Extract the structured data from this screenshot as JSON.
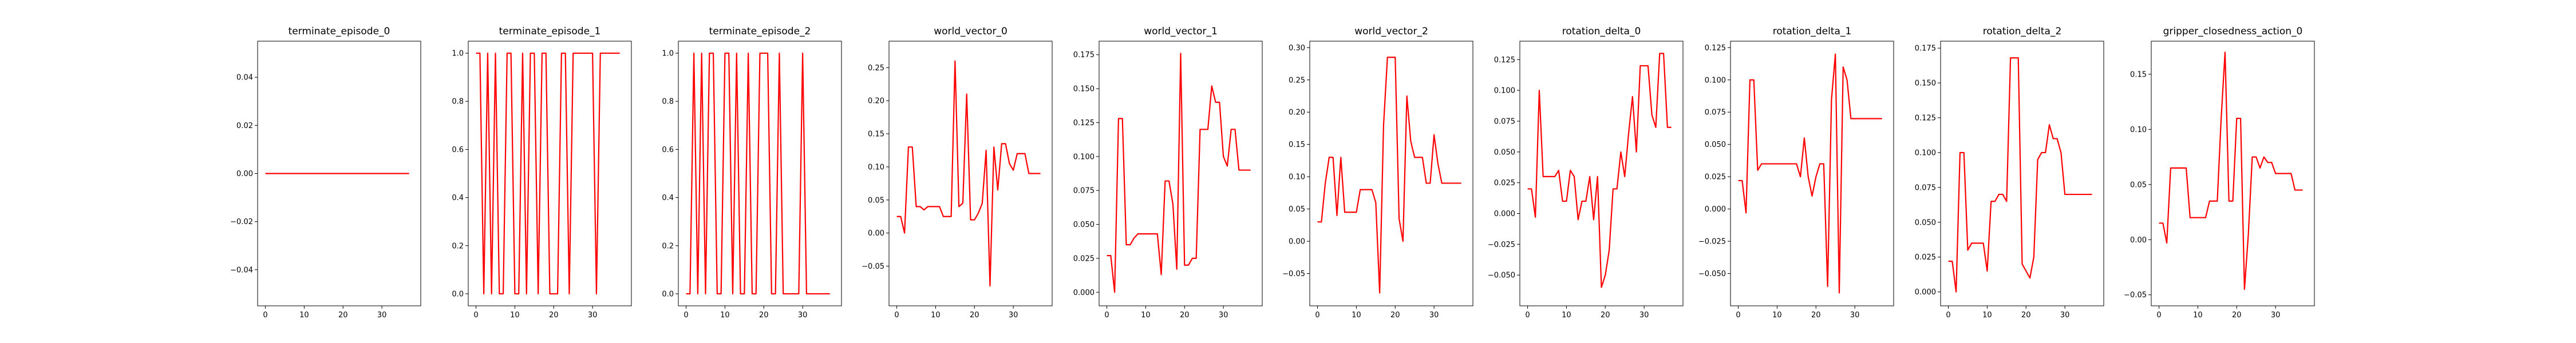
{
  "chart_data": [
    {
      "type": "line",
      "title": "terminate_episode_0",
      "xlim": [
        -2,
        40
      ],
      "ylim": [
        -0.055,
        0.055
      ],
      "xticks": [
        0,
        10,
        20,
        30
      ],
      "xtick_labels": [
        "0",
        "10",
        "20",
        "30"
      ],
      "yticks": [
        -0.04,
        -0.02,
        0.0,
        0.02,
        0.04
      ],
      "ytick_labels": [
        "−0.04",
        "−0.02",
        "0.00",
        "0.02",
        "0.04"
      ],
      "series": [
        {
          "color": "#ff0000",
          "x": [
            0,
            1,
            2,
            3,
            4,
            5,
            6,
            7,
            8,
            9,
            10,
            11,
            12,
            13,
            14,
            15,
            16,
            17,
            18,
            19,
            20,
            21,
            22,
            23,
            24,
            25,
            26,
            27,
            28,
            29,
            30,
            31,
            32,
            33,
            34,
            35,
            36,
            37
          ],
          "y": [
            0,
            0,
            0,
            0,
            0,
            0,
            0,
            0,
            0,
            0,
            0,
            0,
            0,
            0,
            0,
            0,
            0,
            0,
            0,
            0,
            0,
            0,
            0,
            0,
            0,
            0,
            0,
            0,
            0,
            0,
            0,
            0,
            0,
            0,
            0,
            0,
            0,
            0
          ]
        }
      ]
    },
    {
      "type": "line",
      "title": "terminate_episode_1",
      "xlim": [
        -2,
        40
      ],
      "ylim": [
        -0.05,
        1.05
      ],
      "xticks": [
        0,
        10,
        20,
        30
      ],
      "xtick_labels": [
        "0",
        "10",
        "20",
        "30"
      ],
      "yticks": [
        0.0,
        0.2,
        0.4,
        0.6,
        0.8,
        1.0
      ],
      "ytick_labels": [
        "0.0",
        "0.2",
        "0.4",
        "0.6",
        "0.8",
        "1.0"
      ],
      "series": [
        {
          "color": "#ff0000",
          "x": [
            0,
            1,
            2,
            3,
            4,
            5,
            6,
            7,
            8,
            9,
            10,
            11,
            12,
            13,
            14,
            15,
            16,
            17,
            18,
            19,
            20,
            21,
            22,
            23,
            24,
            25,
            26,
            27,
            28,
            29,
            30,
            31,
            32,
            33,
            34,
            35,
            36,
            37
          ],
          "y": [
            1,
            1,
            0,
            1,
            0,
            1,
            0,
            0,
            1,
            1,
            0,
            0,
            1,
            0,
            1,
            1,
            0,
            1,
            1,
            0,
            0,
            0,
            1,
            1,
            0,
            1,
            1,
            1,
            1,
            1,
            1,
            0,
            1,
            1,
            1,
            1,
            1,
            1
          ]
        }
      ]
    },
    {
      "type": "line",
      "title": "terminate_episode_2",
      "xlim": [
        -2,
        40
      ],
      "ylim": [
        -0.05,
        1.05
      ],
      "xticks": [
        0,
        10,
        20,
        30
      ],
      "xtick_labels": [
        "0",
        "10",
        "20",
        "30"
      ],
      "yticks": [
        0.0,
        0.2,
        0.4,
        0.6,
        0.8,
        1.0
      ],
      "ytick_labels": [
        "0.0",
        "0.2",
        "0.4",
        "0.6",
        "0.8",
        "1.0"
      ],
      "series": [
        {
          "color": "#ff0000",
          "x": [
            0,
            1,
            2,
            3,
            4,
            5,
            6,
            7,
            8,
            9,
            10,
            11,
            12,
            13,
            14,
            15,
            16,
            17,
            18,
            19,
            20,
            21,
            22,
            23,
            24,
            25,
            26,
            27,
            28,
            29,
            30,
            31,
            32,
            33,
            34,
            35,
            36,
            37
          ],
          "y": [
            0,
            0,
            1,
            0,
            1,
            0,
            1,
            1,
            0,
            0,
            1,
            1,
            0,
            1,
            0,
            0,
            1,
            0,
            0,
            1,
            1,
            1,
            0,
            0,
            1,
            0,
            0,
            0,
            0,
            0,
            1,
            0,
            0,
            0,
            0,
            0,
            0,
            0
          ]
        }
      ]
    },
    {
      "type": "line",
      "title": "world_vector_0",
      "xlim": [
        -2,
        40
      ],
      "ylim": [
        -0.11,
        0.29
      ],
      "xticks": [
        0,
        10,
        20,
        30
      ],
      "xtick_labels": [
        "0",
        "10",
        "20",
        "30"
      ],
      "yticks": [
        -0.05,
        0.0,
        0.05,
        0.1,
        0.15,
        0.2,
        0.25
      ],
      "ytick_labels": [
        "−0.05",
        "0.00",
        "0.05",
        "0.10",
        "0.15",
        "0.20",
        "0.25"
      ],
      "series": [
        {
          "color": "#ff0000",
          "x": [
            0,
            1,
            2,
            3,
            4,
            5,
            6,
            7,
            8,
            9,
            10,
            11,
            12,
            13,
            14,
            15,
            16,
            17,
            18,
            19,
            20,
            21,
            22,
            23,
            24,
            25,
            26,
            27,
            28,
            29,
            30,
            31,
            32,
            33,
            34,
            35,
            36,
            37
          ],
          "y": [
            0.025,
            0.025,
            0.0,
            0.13,
            0.13,
            0.04,
            0.04,
            0.035,
            0.04,
            0.04,
            0.04,
            0.04,
            0.025,
            0.025,
            0.025,
            0.26,
            0.04,
            0.045,
            0.21,
            0.02,
            0.02,
            0.03,
            0.045,
            0.125,
            -0.08,
            0.13,
            0.065,
            0.135,
            0.135,
            0.105,
            0.095,
            0.12,
            0.12,
            0.12,
            0.09,
            0.09,
            0.09,
            0.09
          ]
        }
      ]
    },
    {
      "type": "line",
      "title": "world_vector_1",
      "xlim": [
        -2,
        40
      ],
      "ylim": [
        -0.01,
        0.185
      ],
      "xticks": [
        0,
        10,
        20,
        30
      ],
      "xtick_labels": [
        "0",
        "10",
        "20",
        "30"
      ],
      "yticks": [
        0.0,
        0.025,
        0.05,
        0.075,
        0.1,
        0.125,
        0.15,
        0.175
      ],
      "ytick_labels": [
        "0.000",
        "0.025",
        "0.050",
        "0.075",
        "0.100",
        "0.125",
        "0.150",
        "0.175"
      ],
      "series": [
        {
          "color": "#ff0000",
          "x": [
            0,
            1,
            2,
            3,
            4,
            5,
            6,
            7,
            8,
            9,
            10,
            11,
            12,
            13,
            14,
            15,
            16,
            17,
            18,
            19,
            20,
            21,
            22,
            23,
            24,
            25,
            26,
            27,
            28,
            29,
            30,
            31,
            32,
            33,
            34,
            35,
            36,
            37
          ],
          "y": [
            0.027,
            0.027,
            0.0,
            0.128,
            0.128,
            0.035,
            0.035,
            0.04,
            0.043,
            0.043,
            0.043,
            0.043,
            0.043,
            0.043,
            0.013,
            0.082,
            0.082,
            0.065,
            0.017,
            0.176,
            0.02,
            0.02,
            0.025,
            0.025,
            0.12,
            0.12,
            0.12,
            0.152,
            0.14,
            0.14,
            0.1,
            0.093,
            0.12,
            0.12,
            0.09,
            0.09,
            0.09,
            0.09
          ]
        }
      ]
    },
    {
      "type": "line",
      "title": "world_vector_2",
      "xlim": [
        -2,
        40
      ],
      "ylim": [
        -0.1,
        0.31
      ],
      "xticks": [
        0,
        10,
        20,
        30
      ],
      "xtick_labels": [
        "0",
        "10",
        "20",
        "30"
      ],
      "yticks": [
        -0.05,
        0.0,
        0.05,
        0.1,
        0.15,
        0.2,
        0.25,
        0.3
      ],
      "ytick_labels": [
        "−0.05",
        "0.00",
        "0.05",
        "0.10",
        "0.15",
        "0.20",
        "0.25",
        "0.30"
      ],
      "series": [
        {
          "color": "#ff0000",
          "x": [
            0,
            1,
            2,
            3,
            4,
            5,
            6,
            7,
            8,
            9,
            10,
            11,
            12,
            13,
            14,
            15,
            16,
            17,
            18,
            19,
            20,
            21,
            22,
            23,
            24,
            25,
            26,
            27,
            28,
            29,
            30,
            31,
            32,
            33,
            34,
            35,
            36,
            37
          ],
          "y": [
            0.03,
            0.03,
            0.09,
            0.13,
            0.13,
            0.04,
            0.13,
            0.045,
            0.045,
            0.045,
            0.045,
            0.08,
            0.08,
            0.08,
            0.08,
            0.06,
            -0.08,
            0.18,
            0.285,
            0.285,
            0.285,
            0.035,
            0.0,
            0.225,
            0.155,
            0.13,
            0.13,
            0.13,
            0.09,
            0.09,
            0.165,
            0.12,
            0.09,
            0.09,
            0.09,
            0.09,
            0.09,
            0.09
          ]
        }
      ]
    },
    {
      "type": "line",
      "title": "rotation_delta_0",
      "xlim": [
        -2,
        40
      ],
      "ylim": [
        -0.075,
        0.14
      ],
      "xticks": [
        0,
        10,
        20,
        30
      ],
      "xtick_labels": [
        "0",
        "10",
        "20",
        "30"
      ],
      "yticks": [
        -0.05,
        -0.025,
        0.0,
        0.025,
        0.05,
        0.075,
        0.1,
        0.125
      ],
      "ytick_labels": [
        "−0.050",
        "−0.025",
        "0.000",
        "0.025",
        "0.050",
        "0.075",
        "0.100",
        "0.125"
      ],
      "series": [
        {
          "color": "#ff0000",
          "x": [
            0,
            1,
            2,
            3,
            4,
            5,
            6,
            7,
            8,
            9,
            10,
            11,
            12,
            13,
            14,
            15,
            16,
            17,
            18,
            19,
            20,
            21,
            22,
            23,
            24,
            25,
            26,
            27,
            28,
            29,
            30,
            31,
            32,
            33,
            34,
            35,
            36,
            37
          ],
          "y": [
            0.02,
            0.02,
            -0.003,
            0.1,
            0.03,
            0.03,
            0.03,
            0.03,
            0.035,
            0.01,
            0.01,
            0.035,
            0.03,
            -0.005,
            0.01,
            0.01,
            0.03,
            -0.005,
            0.03,
            -0.06,
            -0.05,
            -0.03,
            0.02,
            0.02,
            0.05,
            0.03,
            0.065,
            0.095,
            0.05,
            0.12,
            0.12,
            0.12,
            0.08,
            0.07,
            0.13,
            0.13,
            0.07,
            0.07
          ]
        }
      ]
    },
    {
      "type": "line",
      "title": "rotation_delta_1",
      "xlim": [
        -2,
        40
      ],
      "ylim": [
        -0.075,
        0.13
      ],
      "xticks": [
        0,
        10,
        20,
        30
      ],
      "xtick_labels": [
        "0",
        "10",
        "20",
        "30"
      ],
      "yticks": [
        -0.05,
        -0.025,
        0.0,
        0.025,
        0.05,
        0.075,
        0.1,
        0.125
      ],
      "ytick_labels": [
        "−0.050",
        "−0.025",
        "0.000",
        "0.025",
        "0.050",
        "0.075",
        "0.100",
        "0.125"
      ],
      "series": [
        {
          "color": "#ff0000",
          "x": [
            0,
            1,
            2,
            3,
            4,
            5,
            6,
            7,
            8,
            9,
            10,
            11,
            12,
            13,
            14,
            15,
            16,
            17,
            18,
            19,
            20,
            21,
            22,
            23,
            24,
            25,
            26,
            27,
            28,
            29,
            30,
            31,
            32,
            33,
            34,
            35,
            36,
            37
          ],
          "y": [
            0.022,
            0.022,
            -0.003,
            0.1,
            0.1,
            0.03,
            0.035,
            0.035,
            0.035,
            0.035,
            0.035,
            0.035,
            0.035,
            0.035,
            0.035,
            0.035,
            0.025,
            0.055,
            0.025,
            0.01,
            0.025,
            0.035,
            0.035,
            -0.06,
            0.085,
            0.12,
            -0.065,
            0.11,
            0.1,
            0.07,
            0.07,
            0.07,
            0.07,
            0.07,
            0.07,
            0.07,
            0.07,
            0.07
          ]
        }
      ]
    },
    {
      "type": "line",
      "title": "rotation_delta_2",
      "xlim": [
        -2,
        40
      ],
      "ylim": [
        -0.01,
        0.18
      ],
      "xticks": [
        0,
        10,
        20,
        30
      ],
      "xtick_labels": [
        "0",
        "10",
        "20",
        "30"
      ],
      "yticks": [
        0.0,
        0.025,
        0.05,
        0.075,
        0.1,
        0.125,
        0.15,
        0.175
      ],
      "ytick_labels": [
        "0.000",
        "0.025",
        "0.050",
        "0.075",
        "0.100",
        "0.125",
        "0.150",
        "0.175"
      ],
      "series": [
        {
          "color": "#ff0000",
          "x": [
            0,
            1,
            2,
            3,
            4,
            5,
            6,
            7,
            8,
            9,
            10,
            11,
            12,
            13,
            14,
            15,
            16,
            17,
            18,
            19,
            20,
            21,
            22,
            23,
            24,
            25,
            26,
            27,
            28,
            29,
            30,
            31,
            32,
            33,
            34,
            35,
            36,
            37
          ],
          "y": [
            0.022,
            0.022,
            0.0,
            0.1,
            0.1,
            0.03,
            0.035,
            0.035,
            0.035,
            0.035,
            0.015,
            0.065,
            0.065,
            0.07,
            0.07,
            0.065,
            0.168,
            0.168,
            0.168,
            0.02,
            0.015,
            0.01,
            0.025,
            0.095,
            0.1,
            0.1,
            0.12,
            0.11,
            0.11,
            0.1,
            0.07,
            0.07,
            0.07,
            0.07,
            0.07,
            0.07,
            0.07,
            0.07
          ]
        }
      ]
    },
    {
      "type": "line",
      "title": "gripper_closedness_action_0",
      "xlim": [
        -2,
        40
      ],
      "ylim": [
        -0.06,
        0.18
      ],
      "xticks": [
        0,
        10,
        20,
        30
      ],
      "xtick_labels": [
        "0",
        "10",
        "20",
        "30"
      ],
      "yticks": [
        -0.05,
        0.0,
        0.05,
        0.1,
        0.15
      ],
      "ytick_labels": [
        "−0.05",
        "0.00",
        "0.05",
        "0.10",
        "0.15"
      ],
      "series": [
        {
          "color": "#ff0000",
          "x": [
            0,
            1,
            2,
            3,
            4,
            5,
            6,
            7,
            8,
            9,
            10,
            11,
            12,
            13,
            14,
            15,
            16,
            17,
            18,
            19,
            20,
            21,
            22,
            23,
            24,
            25,
            26,
            27,
            28,
            29,
            30,
            31,
            32,
            33,
            34,
            35,
            36,
            37
          ],
          "y": [
            0.015,
            0.015,
            -0.003,
            0.065,
            0.065,
            0.065,
            0.065,
            0.065,
            0.02,
            0.02,
            0.02,
            0.02,
            0.02,
            0.035,
            0.035,
            0.035,
            0.11,
            0.17,
            0.035,
            0.035,
            0.11,
            0.11,
            -0.045,
            0.005,
            0.075,
            0.075,
            0.065,
            0.075,
            0.07,
            0.07,
            0.06,
            0.06,
            0.06,
            0.06,
            0.06,
            0.045,
            0.045,
            0.045
          ]
        }
      ]
    }
  ]
}
